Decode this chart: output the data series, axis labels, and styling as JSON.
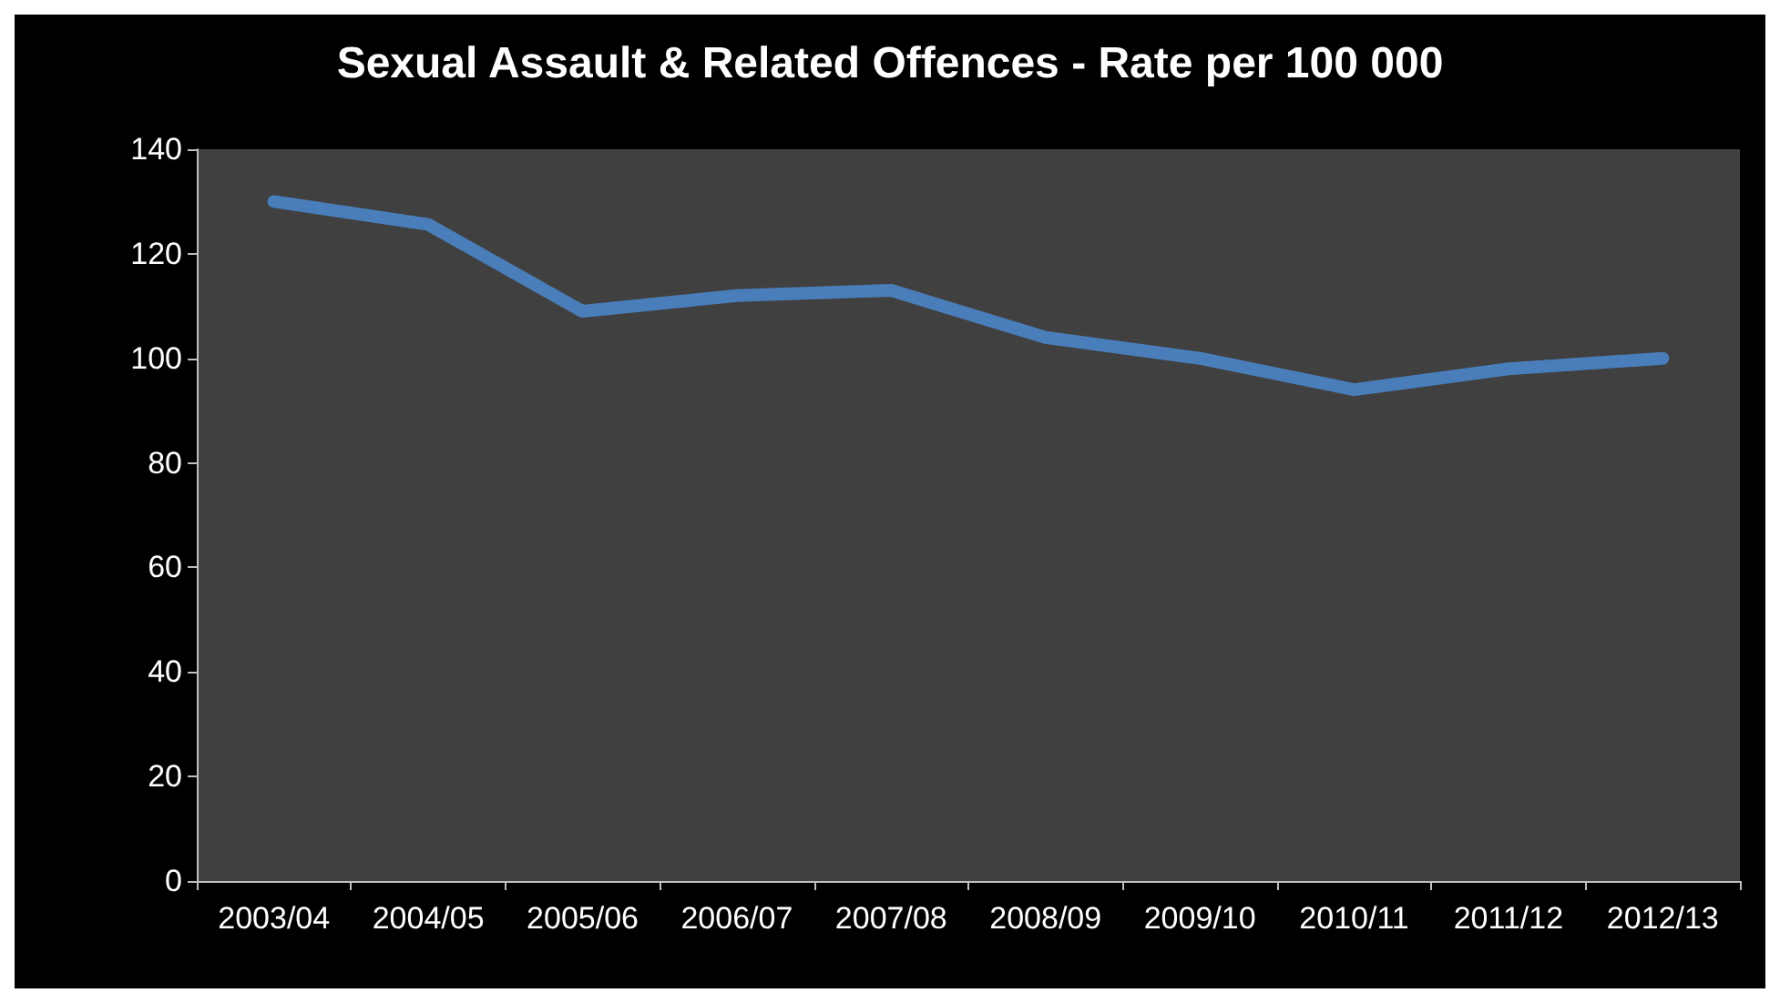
{
  "chart_data": {
    "type": "line",
    "title": "Sexual Assault & Related Offences - Rate per 100 000",
    "categories": [
      "2003/04",
      "2004/05",
      "2005/06",
      "2006/07",
      "2007/08",
      "2008/09",
      "2009/10",
      "2010/11",
      "2011/12",
      "2012/13"
    ],
    "series": [
      {
        "color": "#4a7ebb",
        "values": [
          130,
          125.6,
          109,
          112,
          113,
          104,
          100,
          94,
          98,
          100
        ]
      }
    ],
    "ylim": [
      0,
      140
    ],
    "yticks": [
      0,
      20,
      40,
      60,
      80,
      100,
      120,
      140
    ],
    "grid": false,
    "line_style": "solid"
  }
}
